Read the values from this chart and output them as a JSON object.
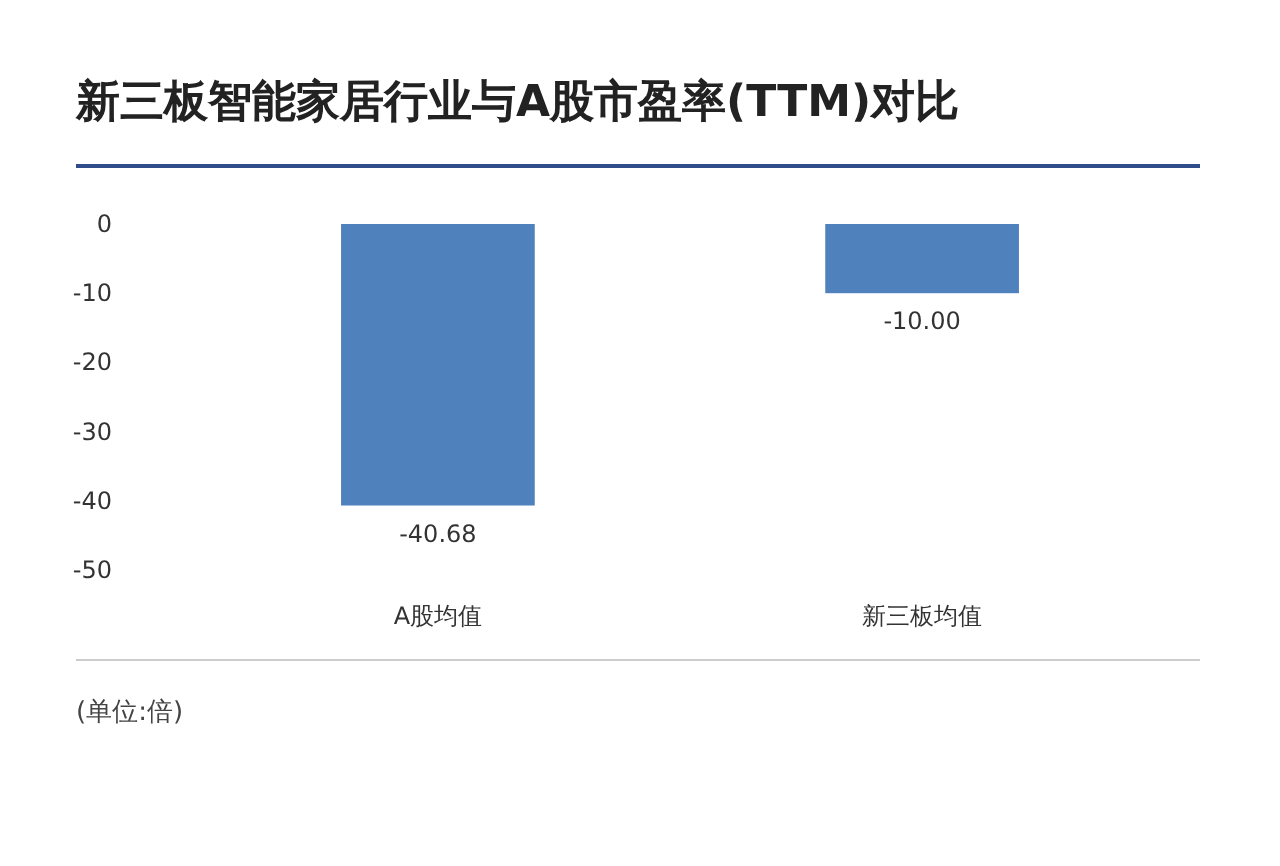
{
  "chart_data": {
    "type": "bar",
    "title": "新三板智能家居行业与A股市盈率(TTM)对比",
    "categories": [
      "A股均值",
      "新三板均值"
    ],
    "values": [
      -40.68,
      -10.0
    ],
    "value_labels": [
      "-40.68",
      "-10.00"
    ],
    "color": "#4f81bd",
    "ylim": [
      -50,
      0
    ],
    "yticks": [
      0,
      -10,
      -20,
      -30,
      -40,
      -50
    ],
    "grid": false,
    "annotations": [
      "(单位:倍)"
    ]
  }
}
